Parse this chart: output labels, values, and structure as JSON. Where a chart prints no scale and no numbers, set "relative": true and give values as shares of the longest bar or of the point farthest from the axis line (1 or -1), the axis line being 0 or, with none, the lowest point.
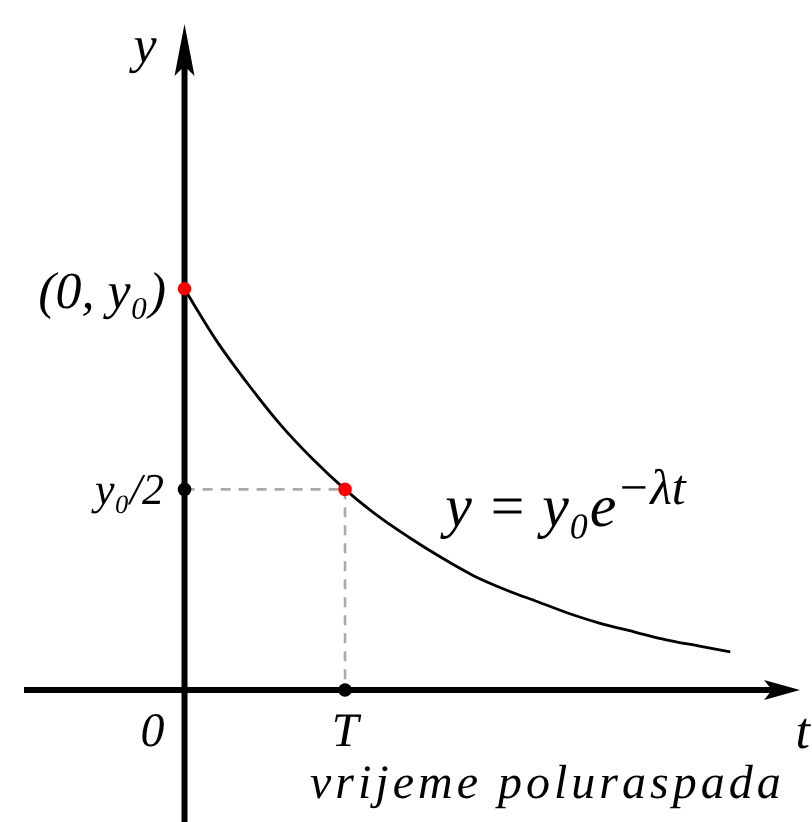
{
  "chart_data": {
    "type": "line",
    "relative": true,
    "xlabel": "t",
    "ylabel": "y",
    "categories": [
      "0",
      null,
      null,
      null,
      null,
      null,
      "T",
      null,
      null,
      null,
      null,
      null,
      null,
      null,
      null,
      null,
      null,
      null,
      null
    ],
    "annotations": [
      "(0, y₀)",
      "y₀/2",
      "vrijeme poluraspada"
    ],
    "series": [
      {
        "name": "y = y₀e$^{−λt}$",
        "color": "#000000",
        "values": [
          null,
          1,
          0.87,
          0.76,
          0.66,
          0.575,
          0.5,
          0.435,
          0.38,
          0.33,
          0.285,
          0.25,
          0.22,
          0.19,
          0.165,
          0.145,
          0.125,
          0.11,
          0.095
        ]
      },
      {
        "color": "#aaaaaa",
        "line_style": "dashed",
        "values": [
          null,
          0.5,
          0.5,
          0.5,
          0.5,
          0.5,
          0.5,
          null,
          null,
          null,
          null,
          null,
          null,
          null,
          null,
          null,
          null,
          null,
          null
        ]
      },
      {
        "color": "#aaaaaa",
        "line_style": "dashed",
        "x": [
          "T",
          "T"
        ],
        "values": [
          0.5,
          0
        ]
      },
      {
        "type": "scatter",
        "color": "#ff0000",
        "marker": "circle",
        "values": [
          null,
          1,
          null,
          null,
          null,
          null,
          0.5,
          null,
          null,
          null,
          null,
          null,
          null,
          null,
          null,
          null,
          null,
          null,
          null
        ]
      },
      {
        "type": "scatter",
        "color": "#000000",
        "marker": "circle",
        "values": [
          null,
          0.5,
          null,
          null,
          null,
          null,
          0,
          null,
          null,
          null,
          null,
          null,
          null,
          null,
          null,
          null,
          null,
          null,
          null
        ]
      }
    ]
  }
}
